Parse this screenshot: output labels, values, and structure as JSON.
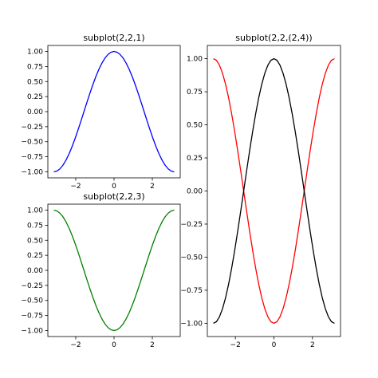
{
  "chart_data": [
    {
      "type": "line",
      "title": "subplot(2,2,1)",
      "xlim": [
        -3.4557519,
        3.4557519
      ],
      "ylim": [
        -1.1,
        1.1
      ],
      "xticks": [
        -2,
        0,
        2
      ],
      "xtick_labels": [
        "−2",
        "0",
        "2"
      ],
      "yticks": [
        -1.0,
        -0.75,
        -0.5,
        -0.25,
        0.0,
        0.25,
        0.5,
        0.75,
        1.0
      ],
      "ytick_labels": [
        "−1.00",
        "−0.75",
        "−0.50",
        "−0.25",
        "0.00",
        "0.25",
        "0.50",
        "0.75",
        "1.00"
      ],
      "grid": false,
      "series": [
        {
          "color": "#0000ff",
          "x": [
            -3.14159,
            -2.98451,
            -2.82743,
            -2.67035,
            -2.51327,
            -2.35619,
            -2.19911,
            -2.04204,
            -1.88496,
            -1.72788,
            -1.5708,
            -1.41372,
            -1.25664,
            -1.09956,
            -0.94248,
            -0.7854,
            -0.62832,
            -0.47124,
            -0.31416,
            -0.15708,
            0.0,
            0.15708,
            0.31416,
            0.47124,
            0.62832,
            0.7854,
            0.94248,
            1.09956,
            1.25664,
            1.41372,
            1.5708,
            1.72788,
            1.88496,
            2.04204,
            2.19911,
            2.35619,
            2.51327,
            2.67035,
            2.82743,
            2.98451,
            3.14159
          ],
          "y": [
            -1.0,
            -0.98769,
            -0.95106,
            -0.89101,
            -0.80902,
            -0.70711,
            -0.58779,
            -0.45399,
            -0.30902,
            -0.15643,
            0.0,
            0.15643,
            0.30902,
            0.45399,
            0.58779,
            0.70711,
            0.80902,
            0.89101,
            0.95106,
            0.98769,
            1.0,
            0.98769,
            0.95106,
            0.89101,
            0.80902,
            0.70711,
            0.58779,
            0.45399,
            0.30902,
            0.15643,
            0.0,
            -0.15643,
            -0.30902,
            -0.45399,
            -0.58779,
            -0.70711,
            -0.80902,
            -0.89101,
            -0.95106,
            -0.98769,
            -1.0
          ]
        }
      ]
    },
    {
      "type": "line",
      "title": "subplot(2,2,3)",
      "xlim": [
        -3.4557519,
        3.4557519
      ],
      "ylim": [
        -1.1,
        1.1
      ],
      "xticks": [
        -2,
        0,
        2
      ],
      "xtick_labels": [
        "−2",
        "0",
        "2"
      ],
      "yticks": [
        -1.0,
        -0.75,
        -0.5,
        -0.25,
        0.0,
        0.25,
        0.5,
        0.75,
        1.0
      ],
      "ytick_labels": [
        "−1.00",
        "−0.75",
        "−0.50",
        "−0.25",
        "0.00",
        "0.25",
        "0.50",
        "0.75",
        "1.00"
      ],
      "grid": false,
      "series": [
        {
          "color": "#008000",
          "x": [
            -3.14159,
            -2.98451,
            -2.82743,
            -2.67035,
            -2.51327,
            -2.35619,
            -2.19911,
            -2.04204,
            -1.88496,
            -1.72788,
            -1.5708,
            -1.41372,
            -1.25664,
            -1.09956,
            -0.94248,
            -0.7854,
            -0.62832,
            -0.47124,
            -0.31416,
            -0.15708,
            0.0,
            0.15708,
            0.31416,
            0.47124,
            0.62832,
            0.7854,
            0.94248,
            1.09956,
            1.25664,
            1.41372,
            1.5708,
            1.72788,
            1.88496,
            2.04204,
            2.19911,
            2.35619,
            2.51327,
            2.67035,
            2.82743,
            2.98451,
            3.14159
          ],
          "y": [
            1.0,
            0.98769,
            0.95106,
            0.89101,
            0.80902,
            0.70711,
            0.58779,
            0.45399,
            0.30902,
            0.15643,
            0.0,
            -0.15643,
            -0.30902,
            -0.45399,
            -0.58779,
            -0.70711,
            -0.80902,
            -0.89101,
            -0.95106,
            -0.98769,
            -1.0,
            -0.98769,
            -0.95106,
            -0.89101,
            -0.80902,
            -0.70711,
            -0.58779,
            -0.45399,
            -0.30902,
            -0.15643,
            0.0,
            0.15643,
            0.30902,
            0.45399,
            0.58779,
            0.70711,
            0.80902,
            0.89101,
            0.95106,
            0.98769,
            1.0
          ]
        }
      ]
    },
    {
      "type": "line",
      "title": "subplot(2,2,(2,4))",
      "xlim": [
        -3.4557519,
        3.4557519
      ],
      "ylim": [
        -1.1,
        1.1
      ],
      "xticks": [
        -2,
        0,
        2
      ],
      "xtick_labels": [
        "−2",
        "0",
        "2"
      ],
      "yticks": [
        -1.0,
        -0.75,
        -0.5,
        -0.25,
        0.0,
        0.25,
        0.5,
        0.75,
        1.0
      ],
      "ytick_labels": [
        "−1.00",
        "−0.75",
        "−0.50",
        "−0.25",
        "0.00",
        "0.25",
        "0.50",
        "0.75",
        "1.00"
      ],
      "grid": false,
      "series": [
        {
          "color": "#ff0000",
          "x": [
            -3.14159,
            -2.98451,
            -2.82743,
            -2.67035,
            -2.51327,
            -2.35619,
            -2.19911,
            -2.04204,
            -1.88496,
            -1.72788,
            -1.5708,
            -1.41372,
            -1.25664,
            -1.09956,
            -0.94248,
            -0.7854,
            -0.62832,
            -0.47124,
            -0.31416,
            -0.15708,
            0.0,
            0.15708,
            0.31416,
            0.47124,
            0.62832,
            0.7854,
            0.94248,
            1.09956,
            1.25664,
            1.41372,
            1.5708,
            1.72788,
            1.88496,
            2.04204,
            2.19911,
            2.35619,
            2.51327,
            2.67035,
            2.82743,
            2.98451,
            3.14159
          ],
          "y": [
            1.0,
            0.98769,
            0.95106,
            0.89101,
            0.80902,
            0.70711,
            0.58779,
            0.45399,
            0.30902,
            0.15643,
            0.0,
            -0.15643,
            -0.30902,
            -0.45399,
            -0.58779,
            -0.70711,
            -0.80902,
            -0.89101,
            -0.95106,
            -0.98769,
            -1.0,
            -0.98769,
            -0.95106,
            -0.89101,
            -0.80902,
            -0.70711,
            -0.58779,
            -0.45399,
            -0.30902,
            -0.15643,
            0.0,
            0.15643,
            0.30902,
            0.45399,
            0.58779,
            0.70711,
            0.80902,
            0.89101,
            0.95106,
            0.98769,
            1.0
          ]
        },
        {
          "color": "#000000",
          "x": [
            -3.14159,
            -2.98451,
            -2.82743,
            -2.67035,
            -2.51327,
            -2.35619,
            -2.19911,
            -2.04204,
            -1.88496,
            -1.72788,
            -1.5708,
            -1.41372,
            -1.25664,
            -1.09956,
            -0.94248,
            -0.7854,
            -0.62832,
            -0.47124,
            -0.31416,
            -0.15708,
            0.0,
            0.15708,
            0.31416,
            0.47124,
            0.62832,
            0.7854,
            0.94248,
            1.09956,
            1.25664,
            1.41372,
            1.5708,
            1.72788,
            1.88496,
            2.04204,
            2.19911,
            2.35619,
            2.51327,
            2.67035,
            2.82743,
            2.98451,
            3.14159
          ],
          "y": [
            -1.0,
            -0.98769,
            -0.95106,
            -0.89101,
            -0.80902,
            -0.70711,
            -0.58779,
            -0.45399,
            -0.30902,
            -0.15643,
            0.0,
            0.15643,
            0.30902,
            0.45399,
            0.58779,
            0.70711,
            0.80902,
            0.89101,
            0.95106,
            0.98769,
            1.0,
            0.98769,
            0.95106,
            0.89101,
            0.80902,
            0.70711,
            0.58779,
            0.45399,
            0.30902,
            0.15643,
            0.0,
            -0.15643,
            -0.30902,
            -0.45399,
            -0.58779,
            -0.70711,
            -0.80902,
            -0.89101,
            -0.95106,
            -0.98769,
            -1.0
          ]
        }
      ]
    }
  ]
}
